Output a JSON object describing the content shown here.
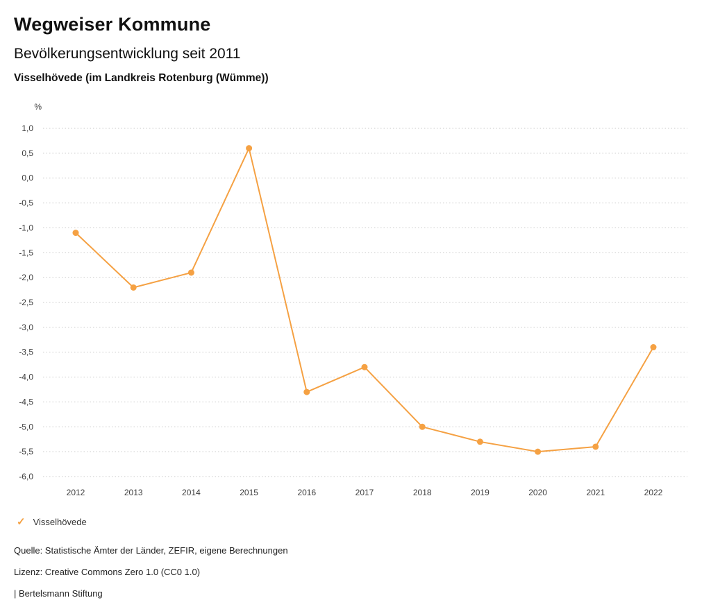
{
  "header": {
    "title": "Wegweiser Kommune",
    "subtitle": "Bevölkerungsentwicklung seit 2011",
    "location": "Visselhövede (im Landkreis Rotenburg (Wümme))"
  },
  "chart_data": {
    "type": "line",
    "title": "Bevölkerungsentwicklung seit 2011",
    "subtitle": "Visselhövede (im Landkreis Rotenburg (Wümme))",
    "unit_label": "%",
    "categories": [
      "2012",
      "2013",
      "2014",
      "2015",
      "2016",
      "2017",
      "2018",
      "2019",
      "2020",
      "2021",
      "2022"
    ],
    "series": [
      {
        "name": "Visselhövede",
        "color": "#F5A143",
        "values": [
          -1.1,
          -2.2,
          -1.9,
          0.6,
          -4.3,
          -3.8,
          -5.0,
          -5.3,
          -5.5,
          -5.4,
          -3.4
        ]
      }
    ],
    "ylim": [
      -6.0,
      1.0
    ],
    "ytick_step": 0.5,
    "ytick_labels": [
      "1,0",
      "0,5",
      "0,0",
      "-0,5",
      "-1,0",
      "-1,5",
      "-2,0",
      "-2,5",
      "-3,0",
      "-3,5",
      "-4,0",
      "-4,5",
      "-5,0",
      "-5,5",
      "-6,0"
    ],
    "grid": "dotted-horizontal",
    "legend_position": "bottom-left"
  },
  "legend": {
    "items": [
      {
        "label": "Visselhövede",
        "color": "#F5A143",
        "marker": "check"
      }
    ],
    "check_glyph": "✓"
  },
  "footer": {
    "source": "Quelle: Statistische Ämter der Länder, ZEFIR, eigene Berechnungen",
    "license": "Lizenz: Creative Commons Zero 1.0 (CC0 1.0)",
    "attribution": "| Bertelsmann Stiftung"
  },
  "colors": {
    "accent": "#F5A143",
    "grid": "#c9c9c9",
    "text": "#3c3c3c"
  }
}
